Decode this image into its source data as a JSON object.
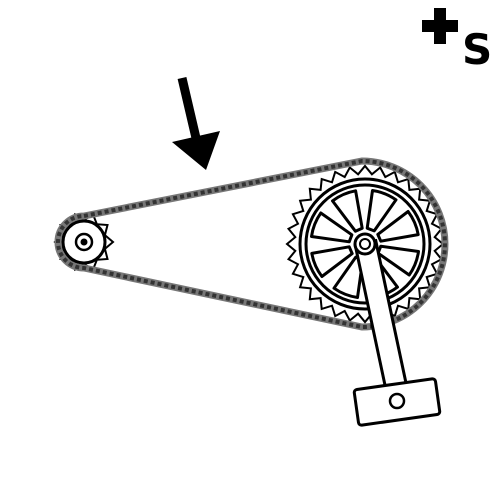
{
  "corner_label": "S"
}
